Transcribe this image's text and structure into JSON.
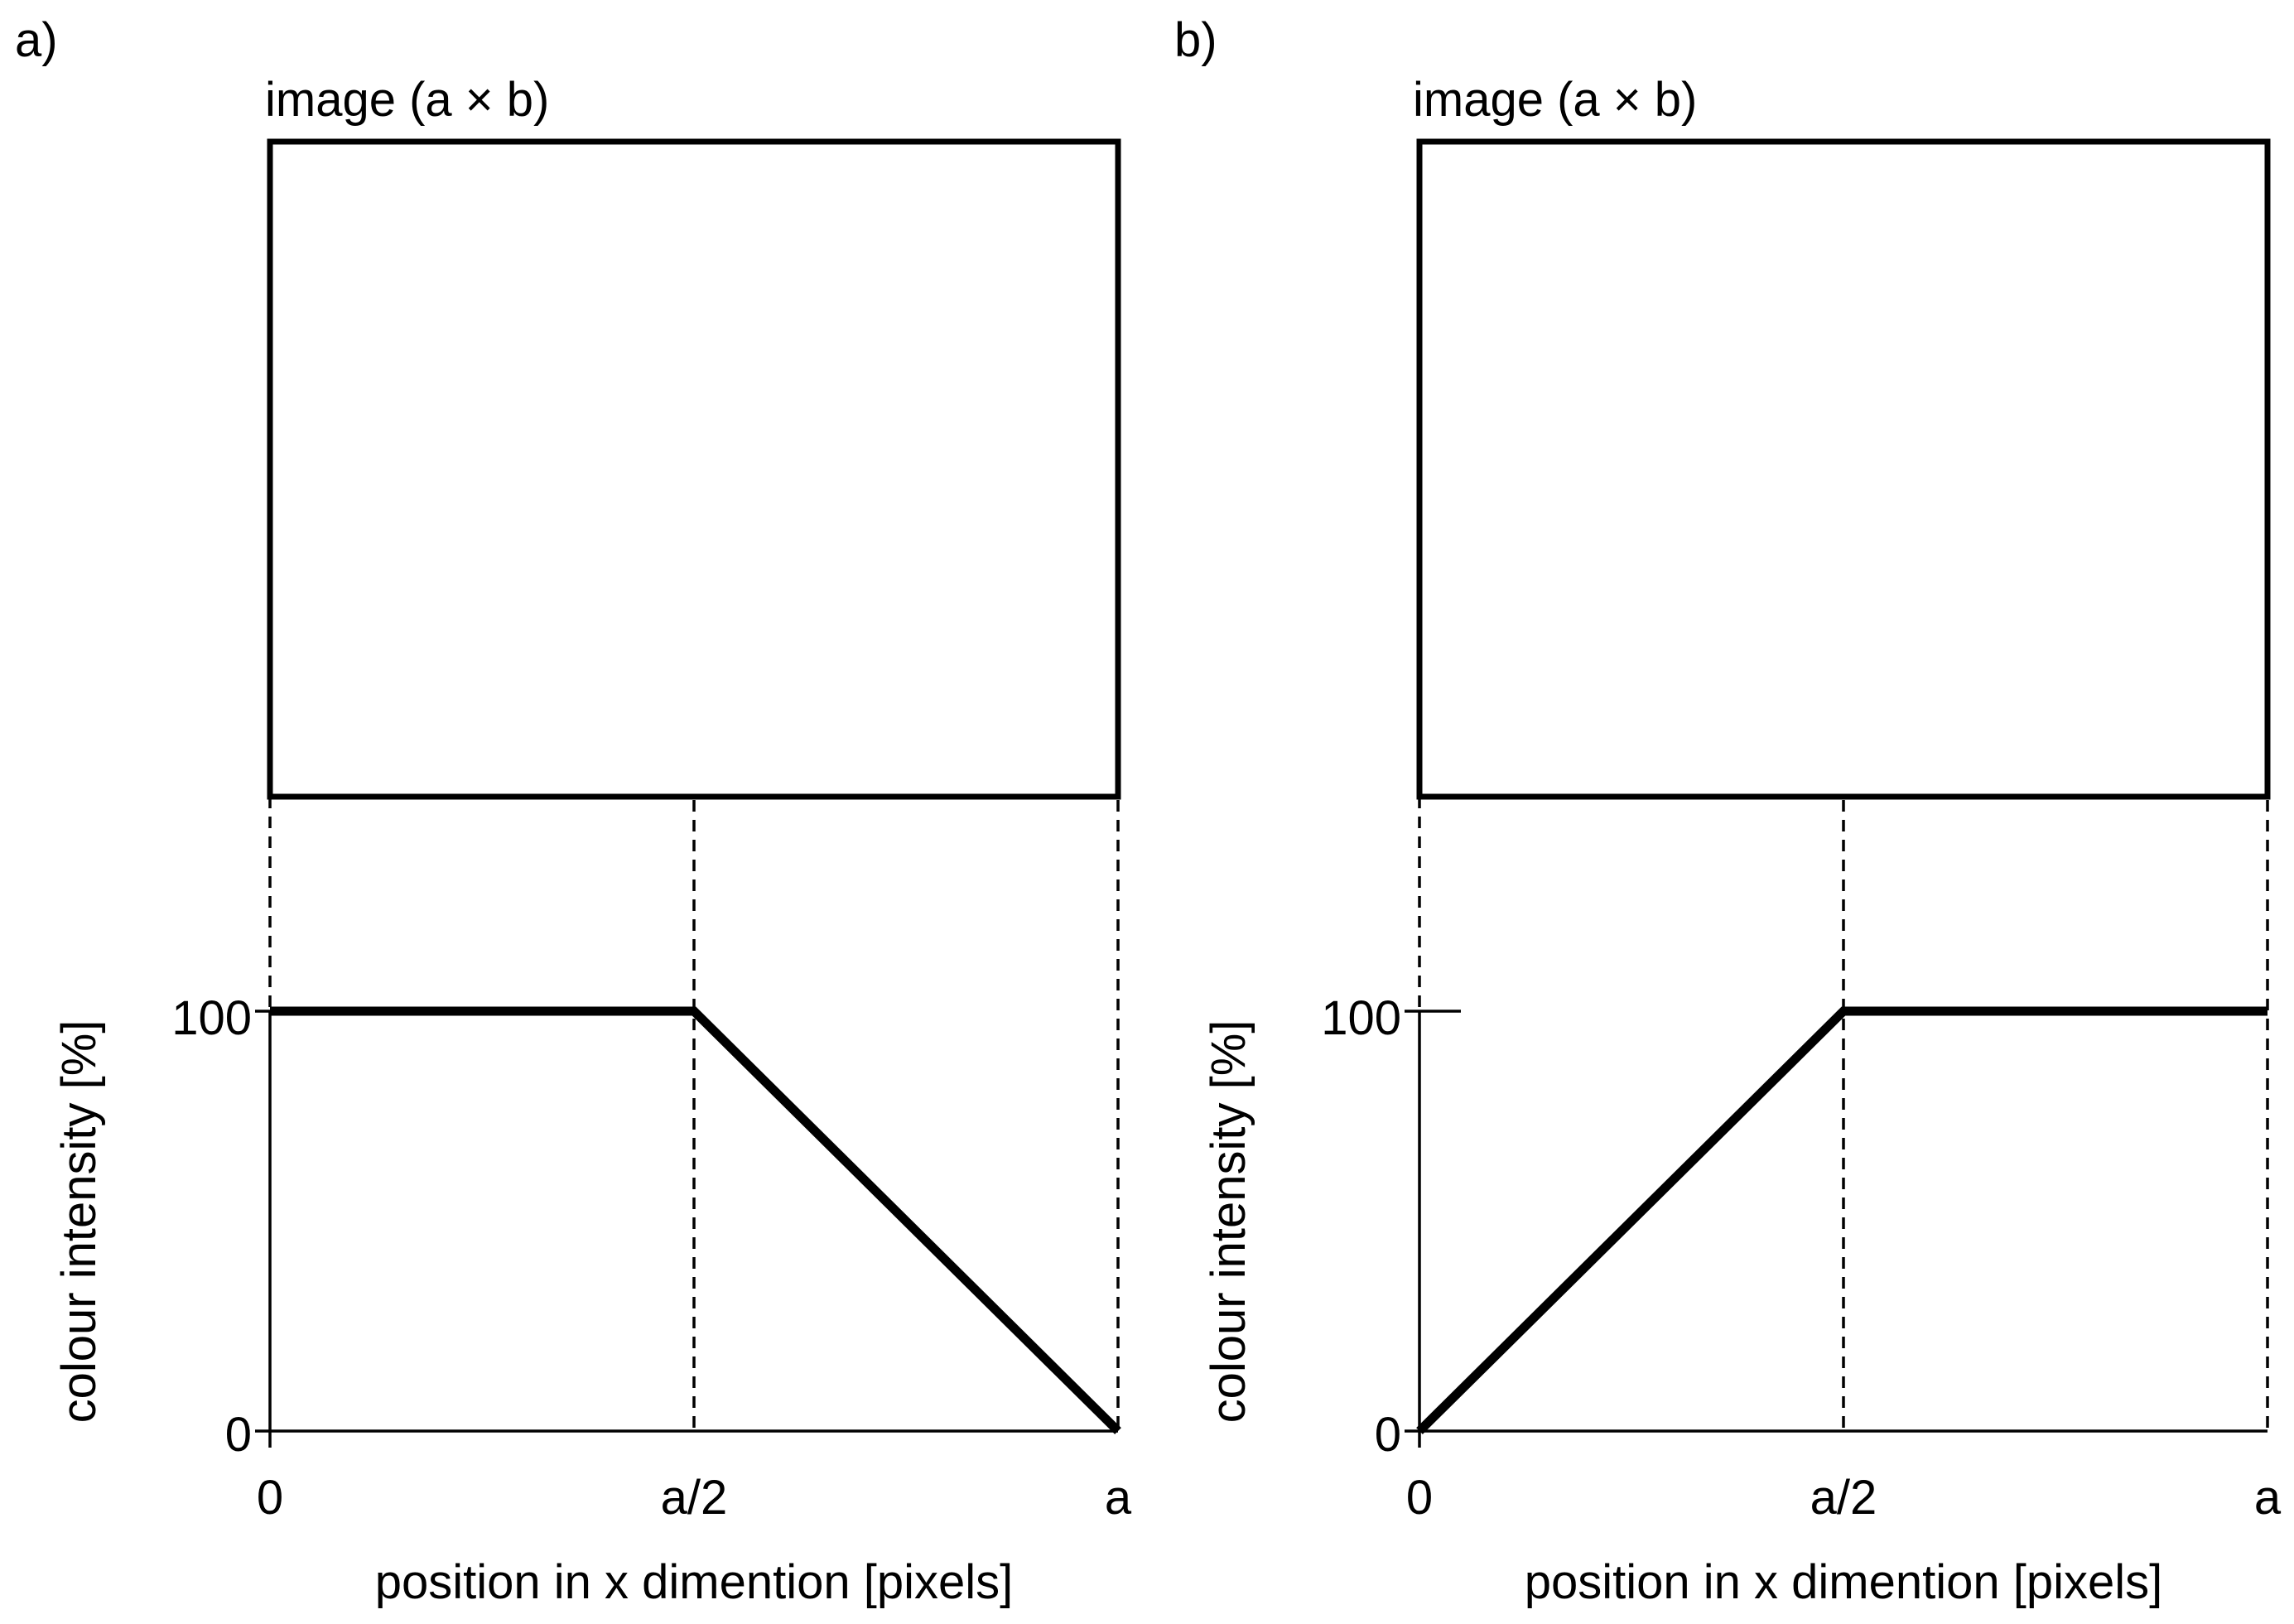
{
  "panels": [
    {
      "panel_label": "a)",
      "image_box_label": "image (a × b)",
      "y_axis_label": "colour intensity [%]",
      "x_axis_label": "position in x dimention [pixels]",
      "y_ticks": [
        "100",
        "0"
      ],
      "x_ticks": [
        "0",
        "a/2",
        "a"
      ]
    },
    {
      "panel_label": "b)",
      "image_box_label": "image (a × b)",
      "y_axis_label": "colour intensity [%]",
      "x_axis_label": "position in x dimention [pixels]",
      "y_ticks": [
        "100",
        "0"
      ],
      "x_ticks": [
        "0",
        "a/2",
        "a"
      ]
    }
  ],
  "chart_data": [
    {
      "type": "line",
      "x": [
        "0",
        "a/2",
        "a"
      ],
      "y": [
        100,
        100,
        0
      ],
      "ylim": [
        0,
        100
      ],
      "xlabel": "position in x dimention [pixels]",
      "ylabel": "colour intensity [%]"
    },
    {
      "type": "line",
      "x": [
        "0",
        "a/2",
        "a"
      ],
      "y": [
        0,
        100,
        100
      ],
      "ylim": [
        0,
        100
      ],
      "xlabel": "position in x dimention [pixels]",
      "ylabel": "colour intensity [%]"
    }
  ]
}
